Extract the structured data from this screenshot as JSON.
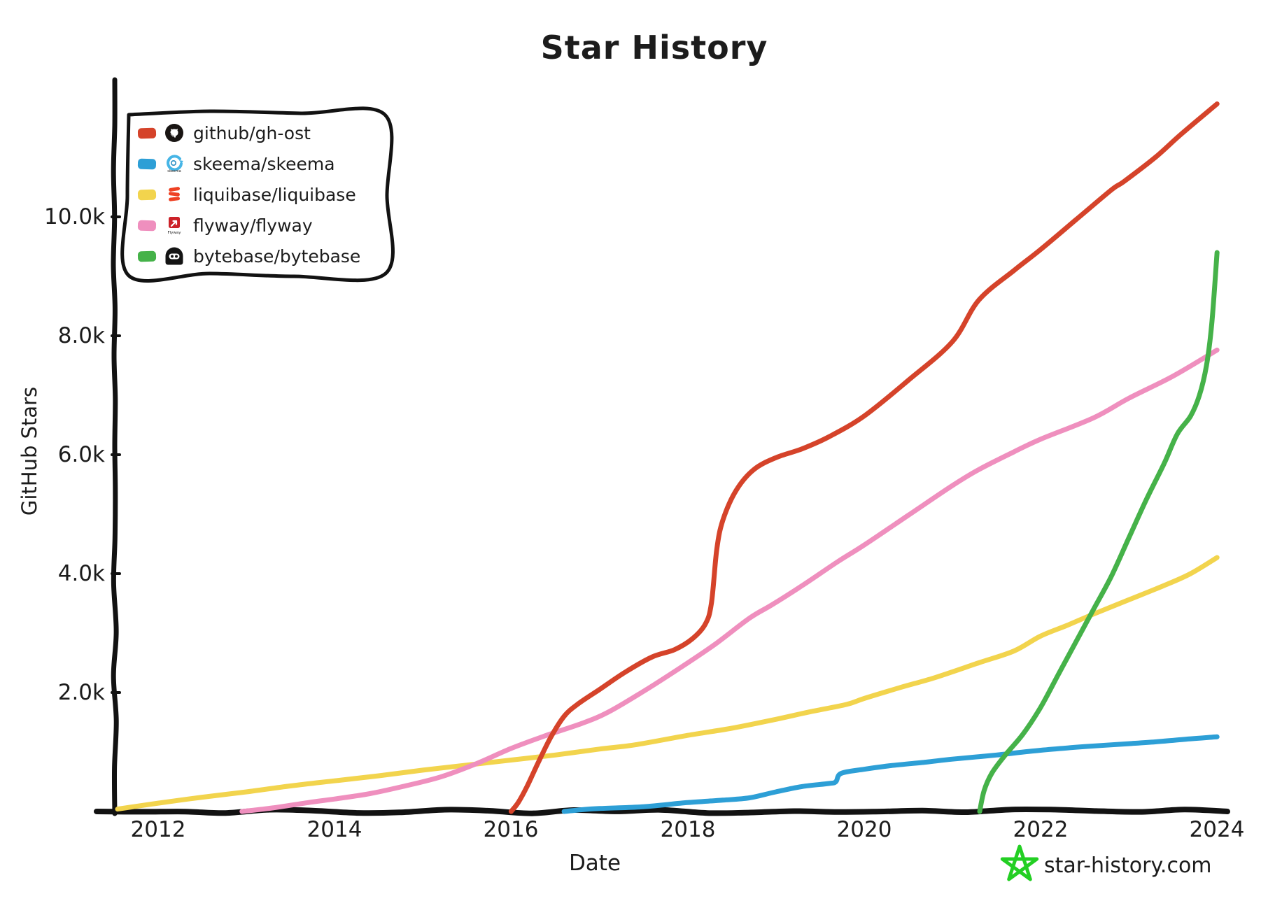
{
  "title": "Star History",
  "footer": {
    "site": "star-history.com",
    "star_color": "#23cf23",
    "text_color": "#8b8b8b"
  },
  "axes_color": "#121212",
  "legend": {
    "position": "top-left",
    "icons": [
      "github-octocat",
      "skeema-swirl",
      "liquibase-coil",
      "flyway-arrow",
      "bytebase-face"
    ]
  },
  "chart_data": {
    "type": "line",
    "title": "Star History",
    "xlabel": "Date",
    "ylabel": "GitHub Stars",
    "grid": false,
    "legend_position": "top-left",
    "x_ticks": [
      2012,
      2014,
      2016,
      2018,
      2020,
      2022,
      2024
    ],
    "x_tick_labels": [
      "2012",
      "2014",
      "2016",
      "2018",
      "2020",
      "2022",
      "2024"
    ],
    "y_ticks": [
      2000,
      4000,
      6000,
      8000,
      10000
    ],
    "y_tick_labels": [
      "2.0k",
      "4.0k",
      "6.0k",
      "8.0k",
      "10.0k"
    ],
    "x_range": [
      2011.5,
      2024.3
    ],
    "y_range": [
      0,
      12300
    ],
    "series": [
      {
        "name": "github/gh-ost",
        "color": "#d5432a",
        "points": [
          [
            2016.0,
            0
          ],
          [
            2016.08,
            150
          ],
          [
            2016.18,
            420
          ],
          [
            2016.3,
            800
          ],
          [
            2016.45,
            1250
          ],
          [
            2016.6,
            1600
          ],
          [
            2016.75,
            1800
          ],
          [
            2017.0,
            2050
          ],
          [
            2017.3,
            2350
          ],
          [
            2017.6,
            2600
          ],
          [
            2017.85,
            2720
          ],
          [
            2018.05,
            2900
          ],
          [
            2018.2,
            3150
          ],
          [
            2018.27,
            3500
          ],
          [
            2018.33,
            4400
          ],
          [
            2018.4,
            4900
          ],
          [
            2018.55,
            5400
          ],
          [
            2018.75,
            5750
          ],
          [
            2019.0,
            5950
          ],
          [
            2019.3,
            6100
          ],
          [
            2019.6,
            6300
          ],
          [
            2020.0,
            6650
          ],
          [
            2020.5,
            7250
          ],
          [
            2021.0,
            7900
          ],
          [
            2021.3,
            8600
          ],
          [
            2021.7,
            9100
          ],
          [
            2022.0,
            9450
          ],
          [
            2022.4,
            9950
          ],
          [
            2022.8,
            10450
          ],
          [
            2022.95,
            10600
          ],
          [
            2023.3,
            11000
          ],
          [
            2023.6,
            11400
          ],
          [
            2024.0,
            11900
          ]
        ]
      },
      {
        "name": "skeema/skeema",
        "color": "#2d9fd6",
        "points": [
          [
            2016.6,
            0
          ],
          [
            2016.8,
            30
          ],
          [
            2017.0,
            50
          ],
          [
            2017.5,
            80
          ],
          [
            2018.0,
            150
          ],
          [
            2018.4,
            190
          ],
          [
            2018.7,
            230
          ],
          [
            2019.0,
            330
          ],
          [
            2019.3,
            420
          ],
          [
            2019.6,
            470
          ],
          [
            2019.68,
            500
          ],
          [
            2019.74,
            640
          ],
          [
            2020.0,
            710
          ],
          [
            2020.3,
            770
          ],
          [
            2020.7,
            830
          ],
          [
            2021.0,
            880
          ],
          [
            2021.5,
            950
          ],
          [
            2022.0,
            1030
          ],
          [
            2022.5,
            1090
          ],
          [
            2023.0,
            1140
          ],
          [
            2023.3,
            1170
          ],
          [
            2023.6,
            1210
          ],
          [
            2024.0,
            1255
          ]
        ]
      },
      {
        "name": "liquibase/liquibase",
        "color": "#f2d44d",
        "points": [
          [
            2011.54,
            40
          ],
          [
            2012.0,
            140
          ],
          [
            2012.5,
            240
          ],
          [
            2013.0,
            330
          ],
          [
            2013.5,
            430
          ],
          [
            2014.0,
            515
          ],
          [
            2014.5,
            600
          ],
          [
            2015.0,
            695
          ],
          [
            2015.5,
            780
          ],
          [
            2016.0,
            865
          ],
          [
            2016.5,
            950
          ],
          [
            2017.0,
            1050
          ],
          [
            2017.4,
            1120
          ],
          [
            2018.0,
            1280
          ],
          [
            2018.5,
            1400
          ],
          [
            2019.0,
            1550
          ],
          [
            2019.4,
            1680
          ],
          [
            2019.8,
            1800
          ],
          [
            2020.0,
            1900
          ],
          [
            2020.4,
            2080
          ],
          [
            2020.8,
            2250
          ],
          [
            2021.3,
            2500
          ],
          [
            2021.7,
            2700
          ],
          [
            2022.0,
            2950
          ],
          [
            2022.3,
            3130
          ],
          [
            2022.6,
            3320
          ],
          [
            2023.0,
            3560
          ],
          [
            2023.4,
            3800
          ],
          [
            2023.7,
            4000
          ],
          [
            2024.0,
            4270
          ]
        ]
      },
      {
        "name": "flyway/flyway",
        "color": "#ef8fbe",
        "points": [
          [
            2012.95,
            0
          ],
          [
            2013.3,
            60
          ],
          [
            2013.7,
            150
          ],
          [
            2014.0,
            210
          ],
          [
            2014.4,
            300
          ],
          [
            2014.8,
            430
          ],
          [
            2015.2,
            580
          ],
          [
            2015.6,
            800
          ],
          [
            2016.0,
            1060
          ],
          [
            2016.4,
            1280
          ],
          [
            2016.8,
            1480
          ],
          [
            2017.1,
            1670
          ],
          [
            2017.5,
            2020
          ],
          [
            2017.9,
            2400
          ],
          [
            2018.3,
            2800
          ],
          [
            2018.7,
            3250
          ],
          [
            2018.95,
            3470
          ],
          [
            2019.3,
            3800
          ],
          [
            2019.7,
            4200
          ],
          [
            2020.0,
            4480
          ],
          [
            2020.5,
            4980
          ],
          [
            2021.0,
            5480
          ],
          [
            2021.3,
            5750
          ],
          [
            2021.7,
            6050
          ],
          [
            2022.0,
            6260
          ],
          [
            2022.6,
            6620
          ],
          [
            2023.0,
            6950
          ],
          [
            2023.5,
            7320
          ],
          [
            2024.0,
            7760
          ]
        ]
      },
      {
        "name": "bytebase/bytebase",
        "color": "#45b249",
        "points": [
          [
            2021.31,
            0
          ],
          [
            2021.36,
            350
          ],
          [
            2021.45,
            650
          ],
          [
            2021.6,
            950
          ],
          [
            2021.8,
            1300
          ],
          [
            2022.0,
            1750
          ],
          [
            2022.2,
            2300
          ],
          [
            2022.4,
            2850
          ],
          [
            2022.6,
            3400
          ],
          [
            2022.8,
            3950
          ],
          [
            2023.0,
            4600
          ],
          [
            2023.2,
            5250
          ],
          [
            2023.4,
            5850
          ],
          [
            2023.55,
            6350
          ],
          [
            2023.7,
            6650
          ],
          [
            2023.8,
            7000
          ],
          [
            2023.88,
            7500
          ],
          [
            2023.94,
            8200
          ],
          [
            2024.0,
            9400
          ]
        ]
      }
    ]
  }
}
